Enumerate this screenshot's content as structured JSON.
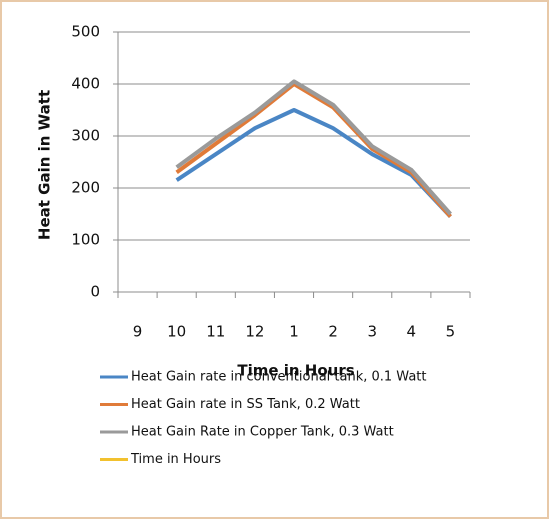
{
  "chart_data": {
    "type": "line",
    "y_label": "Heat Gain in Watt",
    "x_label": "Time in Hours",
    "categories": [
      "9",
      "10",
      "11",
      "12",
      "1",
      "2",
      "3",
      "4",
      "5"
    ],
    "series": [
      {
        "name": "Heat Gain rate in conventional tank, 0.1 Watt",
        "color": "#4a86c5",
        "values": [
          null,
          215,
          265,
          315,
          350,
          315,
          265,
          225,
          145
        ]
      },
      {
        "name": "Heat Gain rate in SS Tank, 0.2 Watt",
        "color": "#e07b39",
        "values": [
          null,
          230,
          285,
          340,
          400,
          355,
          275,
          230,
          145
        ]
      },
      {
        "name": "Heat Gain Rate in Copper Tank, 0.3 Watt",
        "color": "#9a9a9a",
        "values": [
          null,
          240,
          295,
          345,
          405,
          360,
          280,
          235,
          150
        ]
      },
      {
        "name": "Time in Hours",
        "color": "#f2c12e",
        "values": [
          null,
          null,
          null,
          null,
          null,
          null,
          null,
          null,
          null
        ]
      }
    ],
    "ylim": [
      0,
      500
    ],
    "yticks": [
      0,
      100,
      200,
      300,
      400,
      500
    ],
    "grid": true
  }
}
